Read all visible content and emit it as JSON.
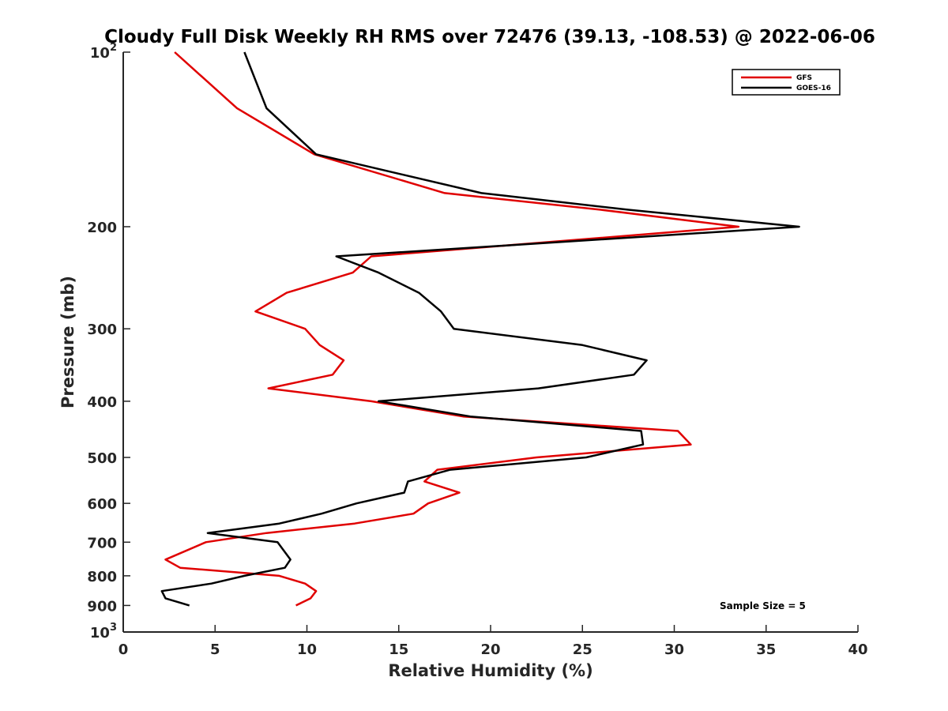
{
  "chart_data": {
    "type": "line",
    "title": "Cloudy Full Disk Weekly RH RMS over 72476 (39.13, -108.53) @ 2022-06-06",
    "xlabel": "Relative Humidity (%)",
    "ylabel": "Pressure (mb)",
    "xlim": [
      0,
      40
    ],
    "ylim": [
      100,
      1000
    ],
    "y_scale": "log",
    "y_reversed": true,
    "grid": false,
    "legend_position": "top-right",
    "x_ticks": [
      0,
      5,
      10,
      15,
      20,
      25,
      30,
      35,
      40
    ],
    "y_ticks": [
      {
        "value": 100,
        "base": "10",
        "exp": "2"
      },
      {
        "value": 200,
        "label": "200"
      },
      {
        "value": 300,
        "label": "300"
      },
      {
        "value": 400,
        "label": "400"
      },
      {
        "value": 500,
        "label": "500"
      },
      {
        "value": 600,
        "label": "600"
      },
      {
        "value": 700,
        "label": "700"
      },
      {
        "value": 800,
        "label": "800"
      },
      {
        "value": 900,
        "label": "900"
      },
      {
        "value": 1000,
        "base": "10",
        "exp": "3"
      }
    ],
    "series": [
      {
        "name": "GFS",
        "color": "#e00000",
        "points": [
          [
            2.8,
            100
          ],
          [
            6.2,
            125
          ],
          [
            10.4,
            150
          ],
          [
            17.5,
            175
          ],
          [
            26,
            187
          ],
          [
            33.5,
            200
          ],
          [
            13.5,
            225
          ],
          [
            12.5,
            240
          ],
          [
            8.9,
            260
          ],
          [
            7.2,
            280
          ],
          [
            9.9,
            300
          ],
          [
            10.7,
            320
          ],
          [
            12.0,
            340
          ],
          [
            11.4,
            360
          ],
          [
            7.9,
            380
          ],
          [
            13.5,
            400
          ],
          [
            18.5,
            425
          ],
          [
            30.2,
            450
          ],
          [
            30.9,
            475
          ],
          [
            22.5,
            500
          ],
          [
            17.1,
            525
          ],
          [
            16.4,
            550
          ],
          [
            18.3,
            575
          ],
          [
            16.6,
            600
          ],
          [
            15.8,
            625
          ],
          [
            12.6,
            650
          ],
          [
            7.8,
            675
          ],
          [
            4.5,
            700
          ],
          [
            2.3,
            750
          ],
          [
            3.1,
            775
          ],
          [
            8.5,
            800
          ],
          [
            9.9,
            825
          ],
          [
            10.5,
            850
          ],
          [
            10.2,
            875
          ],
          [
            9.4,
            900
          ]
        ]
      },
      {
        "name": "GOES-16",
        "color": "#000000",
        "points": [
          [
            6.6,
            100
          ],
          [
            7.8,
            125
          ],
          [
            10.5,
            150
          ],
          [
            19.5,
            175
          ],
          [
            27.5,
            187
          ],
          [
            36.8,
            200
          ],
          [
            11.6,
            225
          ],
          [
            13.9,
            240
          ],
          [
            16.1,
            260
          ],
          [
            17.3,
            280
          ],
          [
            18.0,
            300
          ],
          [
            25.0,
            320
          ],
          [
            28.5,
            340
          ],
          [
            27.8,
            360
          ],
          [
            22.6,
            380
          ],
          [
            13.9,
            400
          ],
          [
            18.9,
            425
          ],
          [
            28.2,
            450
          ],
          [
            28.3,
            475
          ],
          [
            25.2,
            500
          ],
          [
            17.8,
            525
          ],
          [
            15.5,
            550
          ],
          [
            15.3,
            575
          ],
          [
            12.7,
            600
          ],
          [
            10.8,
            625
          ],
          [
            8.5,
            650
          ],
          [
            4.6,
            675
          ],
          [
            8.4,
            700
          ],
          [
            9.1,
            750
          ],
          [
            8.8,
            775
          ],
          [
            6.6,
            800
          ],
          [
            4.8,
            825
          ],
          [
            2.1,
            850
          ],
          [
            2.3,
            875
          ],
          [
            3.6,
            900
          ]
        ]
      }
    ],
    "annotations": [
      "Sample Size = 5"
    ]
  }
}
